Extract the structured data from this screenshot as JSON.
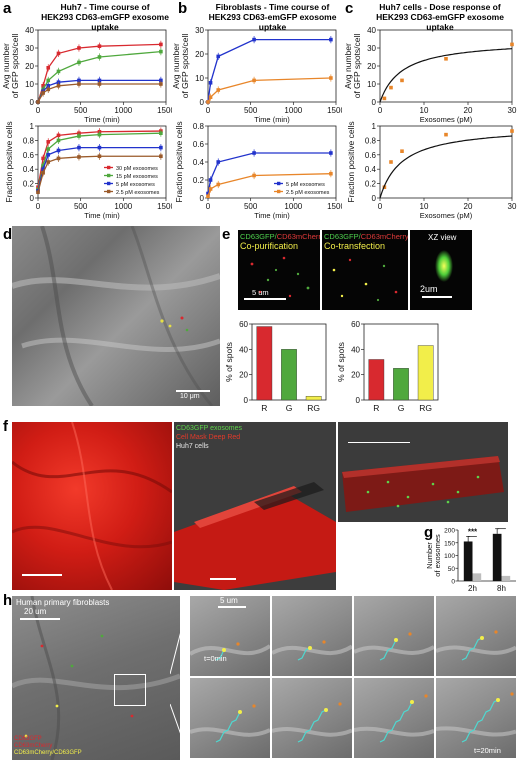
{
  "panels": {
    "a": {
      "label": "a",
      "title_line1": "Huh7 - Time course of",
      "title_line2": "HEK293 CD63-emGFP exosome uptake"
    },
    "b": {
      "label": "b",
      "title_line1": "Fibroblasts - Time course of",
      "title_line2": "HEK293 CD63-emGFP exosome uptake"
    },
    "c": {
      "label": "c",
      "title_line1": "Huh7 cells  - Dose response of",
      "title_line2": "HEK293 CD63-emGFP exosome uptake"
    },
    "d": {
      "label": "d",
      "scale": "10 μm"
    },
    "e": {
      "label": "e",
      "copur_ch1": "CD63GFP/",
      "copur_ch2": "CD63mCherry",
      "copur_title": "Co-purification",
      "cotrans_ch1": "CD63GFP/",
      "cotrans_ch2": "CD63mCherry",
      "cotrans_title": "Co-transfection",
      "xz_title": "XZ view",
      "scale1": "5 um",
      "scale2": "2um"
    },
    "f": {
      "label": "f",
      "legend1": "CD63GFP exosomes",
      "legend2": "Cell Mask Deep Red",
      "legend3": "Huh7 cells"
    },
    "g": {
      "label": "g"
    },
    "h": {
      "label": "h",
      "title": "Human primary fibroblasts",
      "scale1": "20 um",
      "scale2": "5 um",
      "t0": "t=0min",
      "t20": "t=20min",
      "legend1": "CD63GFP",
      "legend2": "CD63mCherry",
      "legend3": "CD63mCherry/CD63GFP"
    }
  },
  "colors": {
    "red": "#d8292f",
    "green": "#4fa83d",
    "blue": "#2233cc",
    "orange": "#e8862a",
    "brown": "#9a5a2a",
    "yellow": "#f2ee4a"
  },
  "chart_data": [
    {
      "id": "a-top",
      "type": "line",
      "xlabel": "Time (min)",
      "ylabel": "Avg number of GFP spots/cell",
      "xlim": [
        0,
        1500
      ],
      "ylim": [
        0,
        40
      ],
      "xticks": [
        0,
        500,
        1000,
        1500
      ],
      "yticks": [
        0,
        10,
        20,
        30,
        40
      ],
      "series": [
        {
          "name": "30  pM exosomes",
          "color": "#d8292f",
          "x": [
            0,
            60,
            120,
            240,
            480,
            720,
            1440
          ],
          "y": [
            0,
            9,
            19,
            27,
            30,
            31,
            32
          ]
        },
        {
          "name": "15  pM exosomes",
          "color": "#4fa83d",
          "x": [
            0,
            60,
            120,
            240,
            480,
            720,
            1440
          ],
          "y": [
            0,
            7,
            12,
            17,
            22,
            25,
            28
          ]
        },
        {
          "name": "5  pM exosomes",
          "color": "#2233cc",
          "x": [
            0,
            60,
            120,
            240,
            480,
            720,
            1440
          ],
          "y": [
            0,
            6,
            9,
            11,
            12,
            12,
            12
          ]
        },
        {
          "name": "2.5 pM exosomes",
          "color": "#9a5a2a",
          "x": [
            0,
            60,
            120,
            240,
            480,
            720,
            1440
          ],
          "y": [
            0,
            5,
            7,
            9,
            10,
            10,
            10
          ]
        }
      ]
    },
    {
      "id": "a-bottom",
      "type": "line",
      "xlabel": "Time (min)",
      "ylabel": "Fraction positive cells",
      "xlim": [
        0,
        1500
      ],
      "ylim": [
        0,
        1.0
      ],
      "xticks": [
        0,
        500,
        1000,
        1500
      ],
      "yticks": [
        0.0,
        0.2,
        0.4,
        0.6,
        0.8,
        1.0
      ],
      "legend": "bottom-right",
      "series": [
        {
          "name": "30  pM exosomes",
          "color": "#d8292f",
          "x": [
            0,
            60,
            120,
            240,
            480,
            720,
            1440
          ],
          "y": [
            0.15,
            0.55,
            0.78,
            0.87,
            0.9,
            0.92,
            0.93
          ]
        },
        {
          "name": "15  pM exosomes",
          "color": "#4fa83d",
          "x": [
            0,
            60,
            120,
            240,
            480,
            720,
            1440
          ],
          "y": [
            0.12,
            0.45,
            0.68,
            0.8,
            0.86,
            0.88,
            0.9
          ]
        },
        {
          "name": "5  pM exosomes",
          "color": "#2233cc",
          "x": [
            0,
            60,
            120,
            240,
            480,
            720,
            1440
          ],
          "y": [
            0.1,
            0.4,
            0.6,
            0.66,
            0.7,
            0.7,
            0.7
          ]
        },
        {
          "name": "2.5 pM exosomes",
          "color": "#9a5a2a",
          "x": [
            0,
            60,
            120,
            240,
            480,
            720,
            1440
          ],
          "y": [
            0.08,
            0.35,
            0.5,
            0.55,
            0.57,
            0.58,
            0.58
          ]
        }
      ]
    },
    {
      "id": "b-top",
      "type": "line",
      "xlabel": "Time (min)",
      "ylabel": "Avg number of GFP spots/cell",
      "xlim": [
        0,
        1500
      ],
      "ylim": [
        0,
        30
      ],
      "xticks": [
        0,
        500,
        1000,
        1500
      ],
      "yticks": [
        0,
        10,
        20,
        30
      ],
      "series": [
        {
          "name": "5 pM exosomes",
          "color": "#2233cc",
          "x": [
            0,
            30,
            120,
            540,
            1440
          ],
          "y": [
            0,
            8,
            19,
            26,
            26
          ]
        },
        {
          "name": "2.5 pM exosomes",
          "color": "#e8862a",
          "x": [
            0,
            30,
            120,
            540,
            1440
          ],
          "y": [
            0,
            2,
            5,
            9,
            10
          ]
        }
      ]
    },
    {
      "id": "b-bottom",
      "type": "line",
      "xlabel": "Time (min)",
      "ylabel": "Fraction positive cells",
      "xlim": [
        0,
        1500
      ],
      "ylim": [
        0,
        0.8
      ],
      "xticks": [
        0,
        500,
        1000,
        1500
      ],
      "yticks": [
        0.0,
        0.2,
        0.4,
        0.6,
        0.8
      ],
      "legend": "bottom-right",
      "series": [
        {
          "name": "5 pM exosomes",
          "color": "#2233cc",
          "x": [
            0,
            30,
            120,
            540,
            1440
          ],
          "y": [
            0.05,
            0.2,
            0.4,
            0.5,
            0.5
          ]
        },
        {
          "name": "2.5 pM exosomes",
          "color": "#e8862a",
          "x": [
            0,
            30,
            120,
            540,
            1440
          ],
          "y": [
            0.02,
            0.1,
            0.15,
            0.25,
            0.27
          ]
        }
      ]
    },
    {
      "id": "c-top",
      "type": "scatter",
      "xlabel": "Exosomes (pM)",
      "ylabel": "Avg number of GFP spots/cell",
      "xlim": [
        0,
        30
      ],
      "ylim": [
        0,
        40
      ],
      "xticks": [
        0,
        10,
        20,
        30
      ],
      "yticks": [
        0,
        10,
        20,
        30,
        40
      ],
      "series": [
        {
          "name": "",
          "color": "#e8862a",
          "x": [
            1,
            2.5,
            5,
            15,
            30
          ],
          "y": [
            2,
            8,
            12,
            24,
            32
          ]
        }
      ]
    },
    {
      "id": "c-bottom",
      "type": "scatter",
      "xlabel": "Exosomes (pM)",
      "ylabel": "Fraction positive cells",
      "xlim": [
        0,
        30
      ],
      "ylim": [
        0,
        1.0
      ],
      "xticks": [
        0,
        10,
        20,
        30
      ],
      "yticks": [
        0.0,
        0.2,
        0.4,
        0.6,
        0.8,
        1.0
      ],
      "series": [
        {
          "name": "",
          "color": "#e8862a",
          "x": [
            1,
            2.5,
            5,
            15,
            30
          ],
          "y": [
            0.15,
            0.5,
            0.65,
            0.88,
            0.93
          ]
        }
      ]
    },
    {
      "id": "e-copurification",
      "type": "bar",
      "ylabel": "% of spots",
      "categories": [
        "R",
        "G",
        "RG"
      ],
      "values": [
        58,
        40,
        3
      ],
      "colors": [
        "#d8292f",
        "#4fa83d",
        "#f2ee4a"
      ],
      "ylim": [
        0,
        60
      ],
      "yticks": [
        0,
        20,
        40,
        60
      ]
    },
    {
      "id": "e-cotransfection",
      "type": "bar",
      "ylabel": "% of spots",
      "categories": [
        "R",
        "G",
        "RG"
      ],
      "values": [
        32,
        25,
        43
      ],
      "colors": [
        "#d8292f",
        "#4fa83d",
        "#f2ee4a"
      ],
      "ylim": [
        0,
        60
      ],
      "yticks": [
        0,
        20,
        40,
        60
      ]
    },
    {
      "id": "g",
      "type": "bar",
      "ylabel": "Number of exosomes",
      "categories": [
        "2h",
        "8h"
      ],
      "series": [
        {
          "name": "",
          "color": "#111111",
          "values": [
            155,
            185
          ]
        },
        {
          "name": "",
          "color": "#bdbdbd",
          "values": [
            30,
            20
          ]
        }
      ],
      "ylim": [
        0,
        200
      ],
      "yticks": [
        0,
        50,
        100,
        150,
        200
      ],
      "annotations": [
        "***",
        "****"
      ]
    }
  ]
}
